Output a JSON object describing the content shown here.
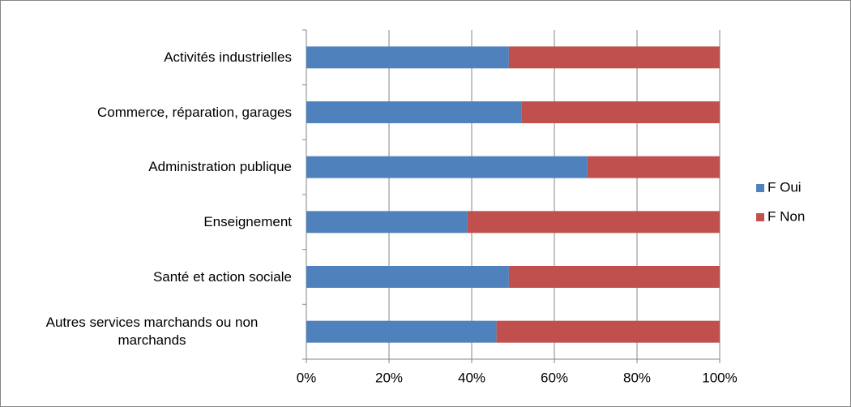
{
  "chart_data": {
    "type": "stacked-bar-horizontal",
    "categories": [
      "Activités industrielles",
      "Commerce, réparation, garages",
      "Administration publique",
      "Enseignement",
      "Santé et action sociale",
      "Autres services marchands ou non marchands"
    ],
    "series": [
      {
        "name": "F Oui",
        "color": "#4f81bd",
        "values": [
          49,
          52,
          68,
          39,
          49,
          46
        ]
      },
      {
        "name": "F Non",
        "color": "#c0504d",
        "values": [
          51,
          48,
          32,
          61,
          51,
          54
        ]
      }
    ],
    "xlim": [
      0,
      100
    ],
    "xticks": [
      {
        "value": 0,
        "label": "0%"
      },
      {
        "value": 20,
        "label": "20%"
      },
      {
        "value": 40,
        "label": "40%"
      },
      {
        "value": 60,
        "label": "60%"
      },
      {
        "value": 80,
        "label": "80%"
      },
      {
        "value": 100,
        "label": "100%"
      }
    ],
    "grid": true,
    "legend": "right"
  }
}
